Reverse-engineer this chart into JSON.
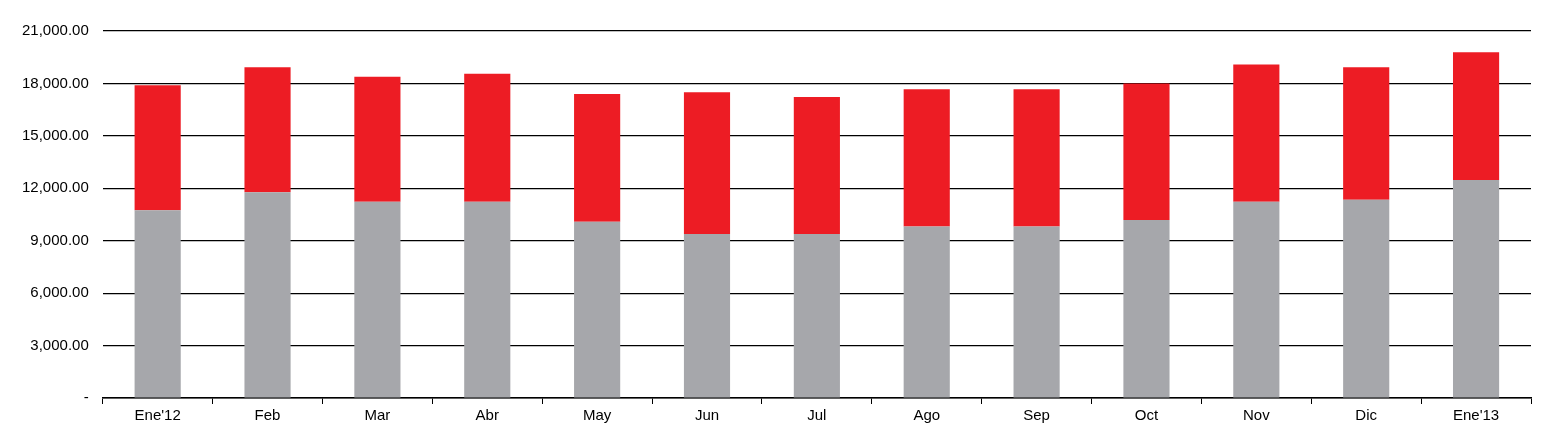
{
  "chart_data": {
    "type": "bar",
    "stacked": true,
    "grid": "y",
    "legend": false,
    "categories": [
      "Ene'12",
      "Feb",
      "Mar",
      "Abr",
      "May",
      "Jun",
      "Jul",
      "Ago",
      "Sep",
      "Oct",
      "Nov",
      "Dic",
      "Ene'13"
    ],
    "series": [
      {
        "color": "#a6a7ab",
        "values": [
          10750,
          11780,
          11230,
          11230,
          10080,
          9380,
          9380,
          9810,
          9810,
          10190,
          11230,
          11340,
          12480
        ]
      },
      {
        "color": "#ed1c24",
        "values": [
          7150,
          7150,
          7150,
          7320,
          7310,
          8120,
          7850,
          7850,
          7850,
          7800,
          7850,
          7590,
          7310
        ]
      }
    ],
    "ylim": [
      0,
      21000
    ],
    "yticks": [
      {
        "value": 0,
        "label": "-"
      },
      {
        "value": 3000,
        "label": "3,000.00"
      },
      {
        "value": 6000,
        "label": "6,000.00"
      },
      {
        "value": 9000,
        "label": "9,000.00"
      },
      {
        "value": 12000,
        "label": "12,000.00"
      },
      {
        "value": 15000,
        "label": "15,000.00"
      },
      {
        "value": 18000,
        "label": "18,000.00"
      },
      {
        "value": 21000,
        "label": "21,000.00"
      }
    ]
  }
}
